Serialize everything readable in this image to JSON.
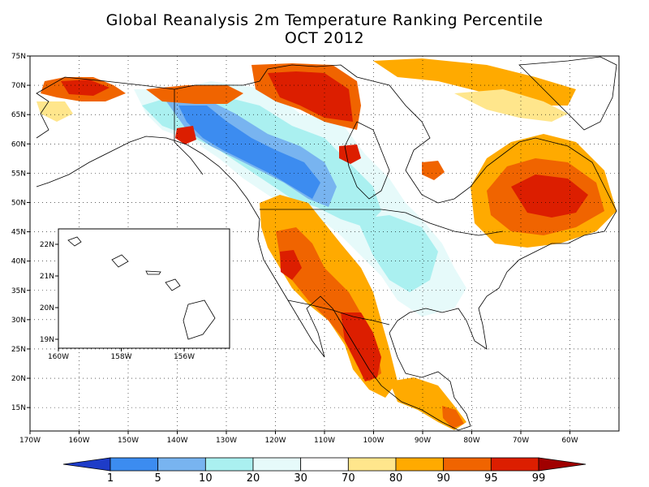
{
  "title": {
    "line1": "Global Reanalysis 2m Temperature Ranking Percentile",
    "line2": "OCT 2012"
  },
  "map": {
    "lon_range": [
      -170,
      -50
    ],
    "lat_range": [
      11,
      75
    ],
    "lon_ticks": [
      "170W",
      "160W",
      "150W",
      "140W",
      "130W",
      "120W",
      "110W",
      "100W",
      "90W",
      "80W",
      "70W",
      "60W"
    ],
    "lat_ticks": [
      "15N",
      "20N",
      "25N",
      "30N",
      "35N",
      "40N",
      "45N",
      "50N",
      "55N",
      "60N",
      "65N",
      "70N",
      "75N"
    ]
  },
  "inset": {
    "lon_ticks": [
      "160W",
      "158W",
      "156W"
    ],
    "lat_ticks": [
      "19N",
      "20N",
      "21N",
      "22N"
    ]
  },
  "colorbar": {
    "labels": [
      "1",
      "5",
      "10",
      "20",
      "30",
      "70",
      "80",
      "90",
      "95",
      "99"
    ],
    "colors": [
      "#1e3cc8",
      "#3c8cf0",
      "#78b4f0",
      "#aaf0f0",
      "#e6fafa",
      "#ffffff",
      "#ffe68c",
      "#ffaa00",
      "#f06400",
      "#dc1e00",
      "#a00000"
    ]
  },
  "colors": {
    "warm_99": "#dc1e00",
    "warm_95": "#f06400",
    "warm_90": "#ffaa00",
    "warm_80": "#ffe68c",
    "cool_30": "#e6fafa",
    "cool_20": "#aaf0f0",
    "cool_10": "#78b4f0",
    "cool_5": "#3c8cf0"
  }
}
